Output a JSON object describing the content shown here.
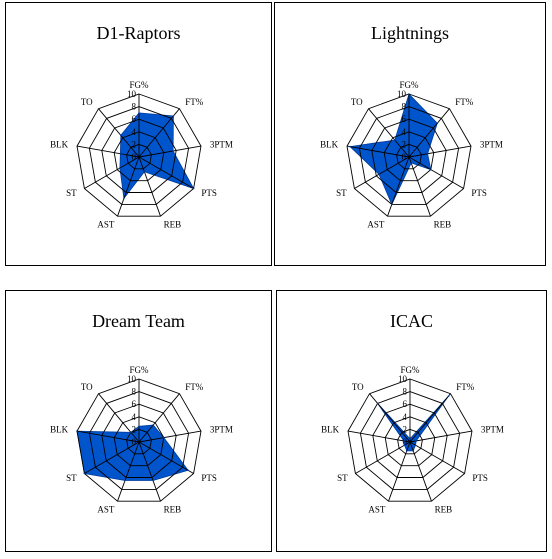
{
  "chart_data": [
    {
      "type": "radar",
      "title": "D1-Raptors",
      "categories": [
        "FG%",
        "FT%",
        "3PTM",
        "PTS",
        "REB",
        "AST",
        "ST",
        "BLK",
        "TO"
      ],
      "scale_ticks": [
        "0",
        "2",
        "4",
        "6",
        "8",
        "10"
      ],
      "rlim": [
        0,
        10
      ],
      "series": [
        {
          "values": [
            7.0,
            8.5,
            5.5,
            10.0,
            2.5,
            7.0,
            3.5,
            3.0,
            4.5
          ]
        }
      ],
      "fill_color": "#0055cc"
    },
    {
      "type": "radar",
      "title": "Lightnings",
      "categories": [
        "FG%",
        "FT%",
        "3PTM",
        "PTS",
        "REB",
        "AST",
        "ST",
        "BLK",
        "TO"
      ],
      "scale_ticks": [
        "0",
        "2",
        "4",
        "6",
        "8",
        "10"
      ],
      "rlim": [
        0,
        10
      ],
      "series": [
        {
          "values": [
            10.0,
            7.0,
            3.0,
            4.0,
            1.0,
            8.0,
            5.5,
            9.5,
            3.5
          ]
        }
      ],
      "fill_color": "#0055cc"
    },
    {
      "type": "radar",
      "title": "Dream Team",
      "categories": [
        "FG%",
        "FT%",
        "3PTM",
        "PTS",
        "REB",
        "AST",
        "ST",
        "BLK",
        "TO"
      ],
      "scale_ticks": [
        "0",
        "2",
        "4",
        "6",
        "8",
        "10"
      ],
      "rlim": [
        0,
        10
      ],
      "series": [
        {
          "values": [
            2.5,
            3.5,
            4.0,
            9.0,
            6.5,
            6.5,
            10.0,
            10.0,
            2.0
          ]
        }
      ],
      "fill_color": "#0055cc"
    },
    {
      "type": "radar",
      "title": "ICAC",
      "categories": [
        "FG%",
        "FT%",
        "3PTM",
        "PTS",
        "REB",
        "AST",
        "ST",
        "BLK",
        "TO"
      ],
      "scale_ticks": [
        "0",
        "2",
        "4",
        "6",
        "8",
        "10"
      ],
      "rlim": [
        0,
        10
      ],
      "series": [
        {
          "values": [
            0.5,
            9.5,
            1.0,
            1.0,
            1.5,
            1.5,
            1.0,
            1.0,
            8.0
          ]
        }
      ],
      "fill_color": "#0055cc"
    }
  ]
}
